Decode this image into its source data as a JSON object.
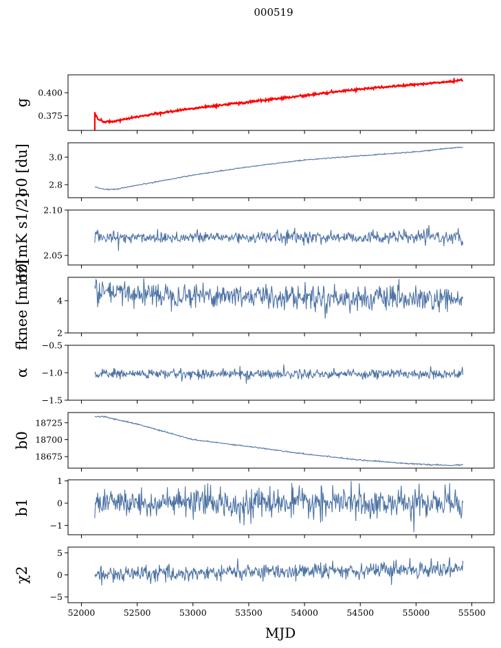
{
  "figure": {
    "title": "000519",
    "xlabel": "MJD"
  },
  "chart_data": [
    {
      "type": "line",
      "panel": "g",
      "ylabel": "g",
      "ylim": [
        0.359,
        0.4195
      ],
      "yticks": [
        0.375,
        0.4
      ],
      "yticklabels": [
        "0.375",
        "0.400"
      ],
      "x_range": [
        52120,
        55420
      ],
      "series": [],
      "fit_color": "#ff0000",
      "line_color": "#4c72a4",
      "x_knots": [
        52120,
        52150,
        52200,
        52300,
        52500,
        53000,
        53500,
        54000,
        54500,
        55000,
        55300,
        55420
      ],
      "y_knots": [
        0.378,
        0.371,
        0.3685,
        0.369,
        0.374,
        0.383,
        0.39,
        0.397,
        0.404,
        0.409,
        0.412,
        0.414
      ],
      "fit_start_spike": [
        0.359,
        0.379
      ],
      "fit_end_spike": [
        0.41,
        0.416
      ]
    },
    {
      "type": "line",
      "panel": "sigma0_du",
      "ylabel": "σ0 [du]",
      "ylim": [
        2.705,
        3.105
      ],
      "yticks": [
        2.8,
        3.0
      ],
      "yticklabels": [
        "2.8",
        "3.0"
      ],
      "x_range": [
        52120,
        55420
      ],
      "series": [],
      "line_color": "#4c72a4",
      "x_knots": [
        52120,
        52200,
        52300,
        52500,
        53000,
        53500,
        54000,
        54500,
        55000,
        55420
      ],
      "y_knots": [
        2.785,
        2.765,
        2.765,
        2.795,
        2.87,
        2.93,
        2.98,
        3.01,
        3.04,
        3.075
      ]
    },
    {
      "type": "line",
      "panel": "sigma0_mK",
      "ylabel": "σ0[mK s1/2]",
      "ylim": [
        2.0395,
        2.1
      ],
      "yticks": [
        2.05,
        2.1
      ],
      "yticklabels": [
        "2.05",
        "2.10"
      ],
      "x_range": [
        52120,
        55420
      ],
      "series": [],
      "line_color": "#4c72a4",
      "mean": 2.07,
      "noise": 0.0035,
      "extremes": [
        [
          52330,
          2.055
        ],
        [
          55420,
          2.062
        ]
      ]
    },
    {
      "type": "line",
      "panel": "fknee",
      "ylabel": "fknee [mHz]",
      "ylim": [
        2.0,
        5.45
      ],
      "yticks": [
        2,
        4
      ],
      "yticklabels": [
        "2",
        "4"
      ],
      "x_range": [
        52120,
        55420
      ],
      "series": [],
      "line_color": "#4c72a4",
      "mean_start": 4.5,
      "mean_end": 4.0,
      "noise": 0.38,
      "extremes": [
        [
          52130,
          5.3
        ],
        [
          52145,
          3.6
        ],
        [
          55280,
          3.3
        ]
      ]
    },
    {
      "type": "line",
      "panel": "alpha",
      "ylabel": "α",
      "ylim": [
        -1.5,
        -0.5
      ],
      "yticks": [
        -1.5,
        -1.0,
        -0.5
      ],
      "yticklabels": [
        "−1.5",
        "−1.0",
        "−0.5"
      ],
      "x_range": [
        52120,
        55420
      ],
      "series": [],
      "line_color": "#4c72a4",
      "mean": -1.02,
      "noise": 0.045,
      "extremes": [
        [
          53480,
          -1.2
        ],
        [
          55130,
          -0.88
        ]
      ]
    },
    {
      "type": "line",
      "panel": "b0",
      "ylabel": "b0",
      "ylim": [
        18658,
        18740
      ],
      "yticks": [
        18675,
        18700,
        18725
      ],
      "yticklabels": [
        "18675",
        "18700",
        "18725"
      ],
      "x_range": [
        52120,
        55420
      ],
      "series": [],
      "line_color": "#4c72a4",
      "x_knots": [
        52120,
        52200,
        52500,
        53000,
        53500,
        54000,
        54500,
        55000,
        55300,
        55420
      ],
      "y_knots": [
        18734,
        18734,
        18723,
        18700,
        18690,
        18679,
        18670,
        18664,
        18662,
        18663
      ]
    },
    {
      "type": "line",
      "panel": "b1",
      "ylabel": "b1",
      "ylim": [
        -1.42,
        1.05
      ],
      "yticks": [
        -1,
        0,
        1
      ],
      "yticklabels": [
        "−1",
        "0",
        "1"
      ],
      "x_range": [
        52120,
        55420
      ],
      "series": [],
      "line_color": "#4c72a4",
      "mean": 0.0,
      "noise": 0.32,
      "extremes": [
        [
          54420,
          1.0
        ],
        [
          54980,
          -1.3
        ],
        [
          55300,
          0.9
        ],
        [
          53460,
          -1.0
        ]
      ]
    },
    {
      "type": "line",
      "panel": "chi2",
      "ylabel": "χ2",
      "ylim": [
        -6.3,
        6.3
      ],
      "yticks": [
        -5,
        0,
        5
      ],
      "yticklabels": [
        "−5",
        "0",
        "5"
      ],
      "x_range": [
        52120,
        55420
      ],
      "series": [],
      "line_color": "#4c72a4",
      "mean_start": 0.0,
      "mean_end": 1.5,
      "noise": 0.9,
      "extremes": [
        [
          52180,
          -2.4
        ],
        [
          53400,
          3.7
        ],
        [
          55300,
          4.0
        ],
        [
          54780,
          -2.3
        ]
      ]
    }
  ],
  "x_axis": {
    "xlim": [
      51880,
      55700
    ],
    "ticks": [
      52000,
      52500,
      53000,
      53500,
      54000,
      54500,
      55000,
      55500
    ],
    "ticklabels": [
      "52000",
      "52500",
      "53000",
      "53500",
      "54000",
      "54500",
      "55000",
      "55500"
    ]
  }
}
